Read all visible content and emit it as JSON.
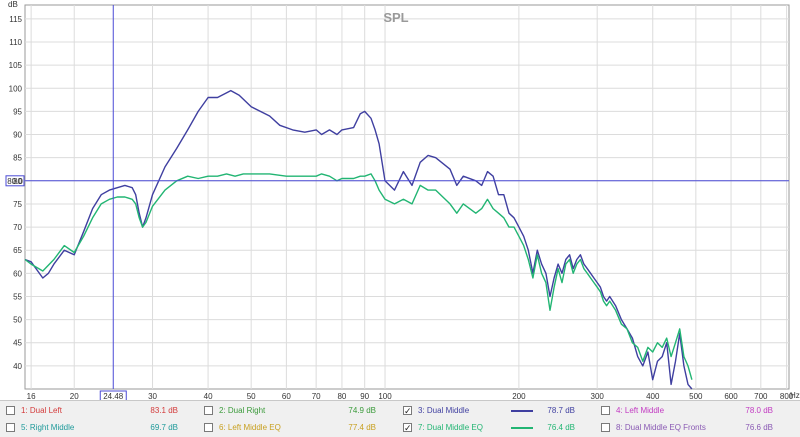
{
  "chart_data": {
    "type": "line",
    "title": "SPL",
    "y_unit": "dB",
    "x_unit": "Hz",
    "x_scale": "log",
    "xlim": [
      15.5,
      810
    ],
    "ylim": [
      35,
      118
    ],
    "x_ticks": [
      "16",
      "20",
      "30",
      "40",
      "50",
      "60",
      "70",
      "80",
      "90",
      "100",
      "200",
      "300",
      "400",
      "500",
      "600",
      "700",
      "800"
    ],
    "y_ticks": [
      "40",
      "45",
      "50",
      "55",
      "60",
      "65",
      "70",
      "75",
      "80",
      "85",
      "90",
      "95",
      "100",
      "105",
      "110",
      "115"
    ],
    "x_tick_values": [
      16,
      20,
      30,
      40,
      50,
      60,
      70,
      80,
      90,
      100,
      200,
      300,
      400,
      500,
      600,
      700,
      800
    ],
    "y_tick_values": [
      40,
      45,
      50,
      55,
      60,
      65,
      70,
      75,
      80,
      85,
      90,
      95,
      100,
      105,
      110,
      115
    ],
    "cursor": {
      "x": 24.48,
      "x_label": "24.48",
      "y": 80.0,
      "y_label": "80.0"
    },
    "grid": true,
    "series": [
      {
        "name": "Dual Middle",
        "color": "#3f3fa0",
        "points": [
          [
            15.5,
            63
          ],
          [
            16,
            62.5
          ],
          [
            17,
            59
          ],
          [
            17.5,
            60
          ],
          [
            18,
            62
          ],
          [
            19,
            65
          ],
          [
            20,
            64
          ],
          [
            21,
            69
          ],
          [
            22,
            74
          ],
          [
            23,
            77
          ],
          [
            24,
            78
          ],
          [
            25,
            78.5
          ],
          [
            26,
            79
          ],
          [
            27,
            78.5
          ],
          [
            27.5,
            77
          ],
          [
            28,
            73
          ],
          [
            28.5,
            70
          ],
          [
            29,
            72
          ],
          [
            30,
            77
          ],
          [
            32,
            83
          ],
          [
            34,
            87
          ],
          [
            36,
            91
          ],
          [
            38,
            95
          ],
          [
            40,
            98
          ],
          [
            42,
            98
          ],
          [
            44,
            99
          ],
          [
            45,
            99.5
          ],
          [
            47,
            98.5
          ],
          [
            50,
            96
          ],
          [
            55,
            94
          ],
          [
            58,
            92
          ],
          [
            62,
            91
          ],
          [
            66,
            90.5
          ],
          [
            70,
            91
          ],
          [
            72,
            90
          ],
          [
            75,
            91
          ],
          [
            78,
            90
          ],
          [
            80,
            91
          ],
          [
            85,
            91.5
          ],
          [
            88,
            94.5
          ],
          [
            90,
            95
          ],
          [
            93,
            93.5
          ],
          [
            95,
            91
          ],
          [
            97,
            88
          ],
          [
            100,
            80
          ],
          [
            105,
            78
          ],
          [
            110,
            82
          ],
          [
            115,
            79
          ],
          [
            120,
            84
          ],
          [
            125,
            85.5
          ],
          [
            130,
            85
          ],
          [
            140,
            82.5
          ],
          [
            145,
            79
          ],
          [
            150,
            81
          ],
          [
            160,
            80
          ],
          [
            165,
            79
          ],
          [
            170,
            82
          ],
          [
            175,
            81
          ],
          [
            180,
            77
          ],
          [
            185,
            77
          ],
          [
            190,
            73
          ],
          [
            195,
            72
          ],
          [
            200,
            70
          ],
          [
            205,
            68
          ],
          [
            210,
            65
          ],
          [
            215,
            60
          ],
          [
            220,
            65
          ],
          [
            225,
            62
          ],
          [
            230,
            60
          ],
          [
            235,
            55
          ],
          [
            240,
            59
          ],
          [
            245,
            62
          ],
          [
            250,
            60
          ],
          [
            255,
            63
          ],
          [
            260,
            64
          ],
          [
            265,
            61
          ],
          [
            270,
            63
          ],
          [
            275,
            64
          ],
          [
            280,
            62
          ],
          [
            285,
            61
          ],
          [
            290,
            60
          ],
          [
            295,
            59
          ],
          [
            300,
            58
          ],
          [
            305,
            57
          ],
          [
            310,
            55
          ],
          [
            315,
            54
          ],
          [
            320,
            55
          ],
          [
            330,
            53
          ],
          [
            340,
            50
          ],
          [
            350,
            48
          ],
          [
            360,
            46
          ],
          [
            370,
            42
          ],
          [
            380,
            40
          ],
          [
            390,
            43
          ],
          [
            400,
            37
          ],
          [
            410,
            41
          ],
          [
            420,
            42
          ],
          [
            430,
            45
          ],
          [
            440,
            36
          ],
          [
            450,
            41
          ],
          [
            460,
            47
          ],
          [
            470,
            40
          ],
          [
            480,
            36
          ],
          [
            490,
            34
          ]
        ]
      },
      {
        "name": "Dual Middle EQ",
        "color": "#22b573",
        "points": [
          [
            15.5,
            63
          ],
          [
            16,
            62
          ],
          [
            17,
            60.5
          ],
          [
            18,
            63
          ],
          [
            19,
            66
          ],
          [
            20,
            64.5
          ],
          [
            21,
            68
          ],
          [
            22,
            72
          ],
          [
            23,
            75
          ],
          [
            24,
            76
          ],
          [
            25,
            76.5
          ],
          [
            26,
            76.5
          ],
          [
            27,
            76
          ],
          [
            27.5,
            75
          ],
          [
            28,
            72
          ],
          [
            28.5,
            70
          ],
          [
            29,
            71
          ],
          [
            30,
            74.5
          ],
          [
            32,
            78
          ],
          [
            34,
            80
          ],
          [
            36,
            81
          ],
          [
            38,
            80.5
          ],
          [
            40,
            81
          ],
          [
            42,
            81
          ],
          [
            44,
            81.5
          ],
          [
            46,
            81
          ],
          [
            48,
            81.5
          ],
          [
            50,
            81.5
          ],
          [
            55,
            81.5
          ],
          [
            60,
            81
          ],
          [
            65,
            81
          ],
          [
            70,
            81
          ],
          [
            72,
            81.5
          ],
          [
            75,
            81
          ],
          [
            78,
            80
          ],
          [
            80,
            80.5
          ],
          [
            85,
            80.5
          ],
          [
            88,
            81
          ],
          [
            90,
            81
          ],
          [
            93,
            81.5
          ],
          [
            95,
            80
          ],
          [
            97,
            78
          ],
          [
            100,
            76
          ],
          [
            105,
            75
          ],
          [
            110,
            76
          ],
          [
            115,
            75
          ],
          [
            120,
            79
          ],
          [
            125,
            78
          ],
          [
            130,
            78
          ],
          [
            140,
            75
          ],
          [
            145,
            73
          ],
          [
            150,
            75
          ],
          [
            160,
            73
          ],
          [
            165,
            74
          ],
          [
            170,
            76
          ],
          [
            175,
            74
          ],
          [
            180,
            73
          ],
          [
            185,
            72
          ],
          [
            190,
            70
          ],
          [
            195,
            70
          ],
          [
            200,
            68
          ],
          [
            205,
            66
          ],
          [
            210,
            63
          ],
          [
            215,
            59
          ],
          [
            220,
            64
          ],
          [
            225,
            60
          ],
          [
            230,
            58
          ],
          [
            235,
            52
          ],
          [
            240,
            57
          ],
          [
            245,
            61
          ],
          [
            250,
            58
          ],
          [
            255,
            62
          ],
          [
            260,
            63
          ],
          [
            265,
            60
          ],
          [
            270,
            62
          ],
          [
            275,
            63
          ],
          [
            280,
            61
          ],
          [
            285,
            60
          ],
          [
            290,
            59
          ],
          [
            295,
            58
          ],
          [
            300,
            57
          ],
          [
            305,
            56
          ],
          [
            310,
            54
          ],
          [
            315,
            53
          ],
          [
            320,
            54
          ],
          [
            330,
            52
          ],
          [
            340,
            49
          ],
          [
            350,
            48
          ],
          [
            360,
            45
          ],
          [
            370,
            44
          ],
          [
            380,
            41
          ],
          [
            390,
            44
          ],
          [
            400,
            43
          ],
          [
            410,
            45
          ],
          [
            420,
            44
          ],
          [
            430,
            46
          ],
          [
            440,
            42
          ],
          [
            450,
            45
          ],
          [
            460,
            48
          ],
          [
            470,
            42
          ],
          [
            480,
            40
          ],
          [
            490,
            37
          ]
        ]
      }
    ]
  },
  "legend": [
    {
      "label": "1: Dual Left",
      "value": "83.1 dB",
      "checked": false,
      "color": "#d33a3a"
    },
    {
      "label": "2: Dual Right",
      "value": "74.9 dB",
      "checked": false,
      "color": "#3a9a3a"
    },
    {
      "label": "3: Dual Middle",
      "value": "78.7 dB",
      "checked": true,
      "color": "#3f3fa0"
    },
    {
      "label": "4: Left Middle",
      "value": "78.0 dB",
      "checked": false,
      "color": "#c23ac2"
    },
    {
      "label": "5: Right Middle",
      "value": "69.7 dB",
      "checked": false,
      "color": "#1f9a9a"
    },
    {
      "label": "6: Left Middle EQ",
      "value": "77.4 dB",
      "checked": false,
      "color": "#c8a020"
    },
    {
      "label": "7: Dual Middle EQ",
      "value": "76.4 dB",
      "checked": true,
      "color": "#22b573"
    },
    {
      "label": "8: Dual Middle EQ Fronts",
      "value": "76.6 dB",
      "checked": false,
      "color": "#8a5ab4"
    }
  ]
}
